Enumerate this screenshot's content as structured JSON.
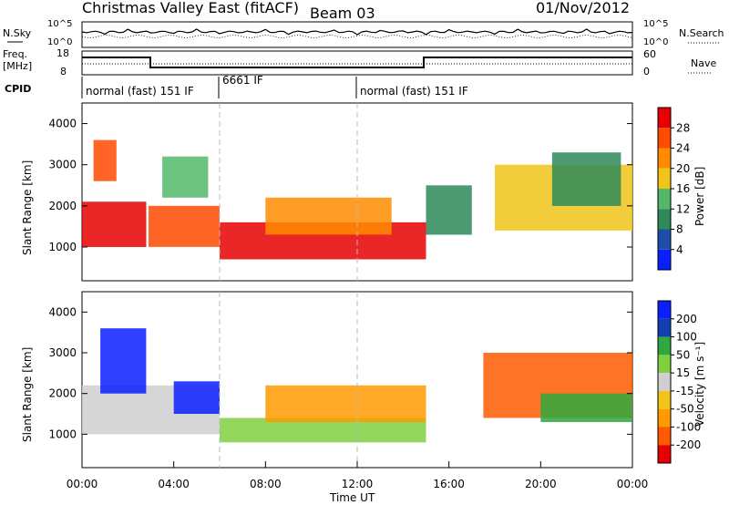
{
  "header": {
    "title": "Christmas Valley East (fitACF)",
    "beam": "Beam 03",
    "date": "01/Nov/2012"
  },
  "status_rows": {
    "nsky_label": "N.Sky",
    "nsky_ticks": [
      "10^5",
      "10^0"
    ],
    "nsearch_label": "N.Search",
    "freq_label_1": "Freq.",
    "freq_label_2": "[MHz]",
    "freq_ticks": [
      "18",
      "8"
    ],
    "nave_ticks": [
      "60",
      "0"
    ],
    "nave_label": "Nave",
    "cpid_label": "CPID",
    "cpid_segments": [
      {
        "label": "normal (fast) 151 IF",
        "start_hour": 0.0
      },
      {
        "label": "6661 IF",
        "start_hour": 6.0
      },
      {
        "label": "normal (fast) 151 IF",
        "start_hour": 12.0
      }
    ]
  },
  "colors": {
    "power": [
      "#0a1fff",
      "#1f4ea8",
      "#2f8a5a",
      "#54b86a",
      "#f0c419",
      "#ff8c00",
      "#ff4a00",
      "#e80000"
    ],
    "velocity": [
      "#e80000",
      "#ff5a00",
      "#ff9a00",
      "#f0c419",
      "#cfcfcf",
      "#7fcf3f",
      "#2fa83f",
      "#123fb0",
      "#0a1fff"
    ]
  },
  "chart_data": [
    {
      "type": "heatmap",
      "panel": "power",
      "ylabel": "Slant Range [km]",
      "xlabel": "Time UT",
      "ylim": [
        180,
        4500
      ],
      "yticks": [
        "1000",
        "2000",
        "3000",
        "4000"
      ],
      "xticks": [
        "00:00",
        "04:00",
        "08:00",
        "12:00",
        "16:00",
        "20:00",
        "00:00"
      ],
      "colorbar": {
        "label": "Power [dB]",
        "ticks": [
          "28",
          "24",
          "20",
          "16",
          "12",
          "8",
          "4"
        ]
      },
      "regions": [
        {
          "t0": 0.0,
          "t1": 2.8,
          "r0": 1000,
          "r1": 2100,
          "level": 7
        },
        {
          "t0": 0.5,
          "t1": 1.5,
          "r0": 2600,
          "r1": 3600,
          "level": 6
        },
        {
          "t0": 2.9,
          "t1": 6.0,
          "r0": 1000,
          "r1": 2000,
          "level": 6
        },
        {
          "t0": 3.5,
          "t1": 5.5,
          "r0": 2200,
          "r1": 3200,
          "level": 3
        },
        {
          "t0": 6.0,
          "t1": 15.0,
          "r0": 700,
          "r1": 1600,
          "level": 7
        },
        {
          "t0": 8.0,
          "t1": 13.5,
          "r0": 1300,
          "r1": 2200,
          "level": 5
        },
        {
          "t0": 15.0,
          "t1": 17.0,
          "r0": 1300,
          "r1": 2500,
          "level": 2
        },
        {
          "t0": 18.0,
          "t1": 24.0,
          "r0": 1400,
          "r1": 3000,
          "level": 4
        },
        {
          "t0": 20.5,
          "t1": 23.5,
          "r0": 2000,
          "r1": 3300,
          "level": 2
        }
      ]
    },
    {
      "type": "heatmap",
      "panel": "velocity",
      "ylabel": "Slant Range [km]",
      "xlabel": "Time UT",
      "ylim": [
        180,
        4500
      ],
      "yticks": [
        "1000",
        "2000",
        "3000",
        "4000"
      ],
      "xticks": [
        "00:00",
        "04:00",
        "08:00",
        "12:00",
        "16:00",
        "20:00",
        "00:00"
      ],
      "colorbar": {
        "label": "Velocity [m s⁻¹]",
        "ticks": [
          "200",
          "100",
          "50",
          "15",
          "-15",
          "-50",
          "-100",
          "-200"
        ]
      },
      "regions": [
        {
          "t0": 0.0,
          "t1": 3.0,
          "r0": 1000,
          "r1": 2200,
          "level": 4
        },
        {
          "t0": 0.8,
          "t1": 2.8,
          "r0": 2000,
          "r1": 3600,
          "level": 8
        },
        {
          "t0": 3.0,
          "t1": 6.0,
          "r0": 1000,
          "r1": 2200,
          "level": 4
        },
        {
          "t0": 4.0,
          "t1": 6.0,
          "r0": 1500,
          "r1": 2300,
          "level": 8
        },
        {
          "t0": 6.0,
          "t1": 15.0,
          "r0": 800,
          "r1": 1400,
          "level": 5
        },
        {
          "t0": 8.0,
          "t1": 15.0,
          "r0": 1300,
          "r1": 2200,
          "level": 2
        },
        {
          "t0": 17.5,
          "t1": 24.0,
          "r0": 1400,
          "r1": 3000,
          "level": 1
        },
        {
          "t0": 20.0,
          "t1": 24.0,
          "r0": 1300,
          "r1": 2000,
          "level": 6
        }
      ]
    }
  ]
}
